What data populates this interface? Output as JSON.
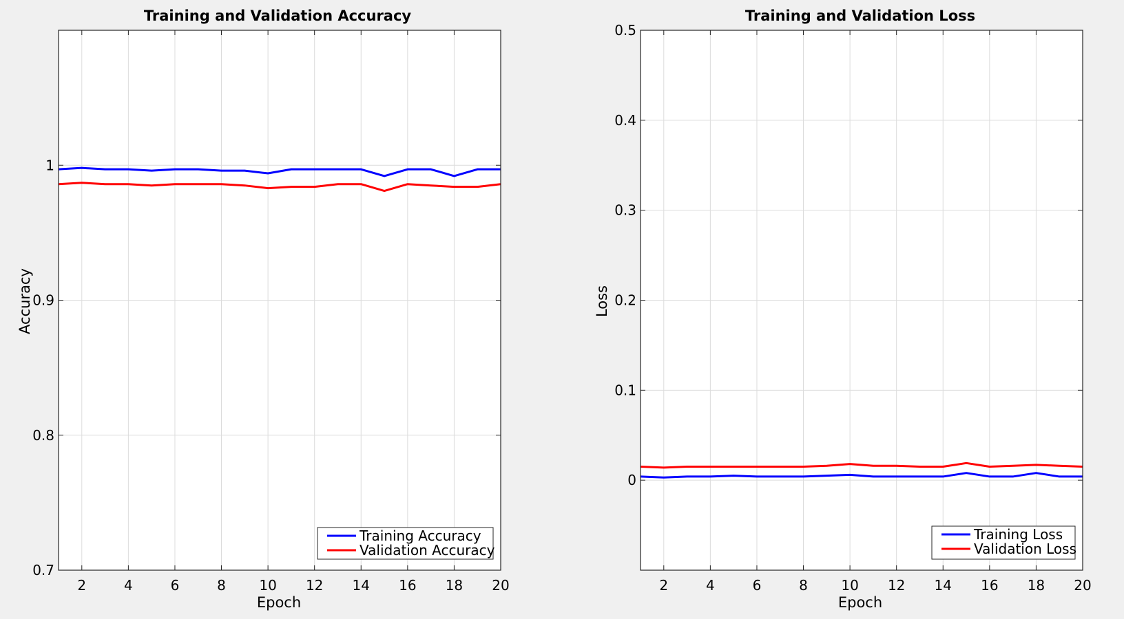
{
  "colors": {
    "background": "#f0f0f0",
    "plot_background": "#ffffff",
    "grid": "#dcdcdc",
    "training": "#0000ff",
    "validation": "#ff0000"
  },
  "chart_data": [
    {
      "type": "line",
      "title": "Training and Validation Accuracy",
      "xlabel": "Epoch",
      "ylabel": "Accuracy",
      "xlim": [
        1,
        20
      ],
      "ylim": [
        0.7,
        1.1
      ],
      "xticks": [
        2,
        4,
        6,
        8,
        10,
        12,
        14,
        16,
        18,
        20
      ],
      "yticks": [
        0.7,
        0.8,
        0.9,
        1.0
      ],
      "ytick_labels": [
        "0.7",
        "0.8",
        "0.9",
        "1"
      ],
      "grid": true,
      "legend_position": "bottom-right",
      "x": [
        1,
        2,
        3,
        4,
        5,
        6,
        7,
        8,
        9,
        10,
        11,
        12,
        13,
        14,
        15,
        16,
        17,
        18,
        19,
        20
      ],
      "series": [
        {
          "name": "Training Accuracy",
          "color": "#0000ff",
          "values": [
            0.997,
            0.998,
            0.997,
            0.997,
            0.996,
            0.997,
            0.997,
            0.996,
            0.996,
            0.994,
            0.997,
            0.997,
            0.997,
            0.997,
            0.992,
            0.997,
            0.997,
            0.992,
            0.997,
            0.997
          ]
        },
        {
          "name": "Validation Accuracy",
          "color": "#ff0000",
          "values": [
            0.986,
            0.987,
            0.986,
            0.986,
            0.985,
            0.986,
            0.986,
            0.986,
            0.985,
            0.983,
            0.984,
            0.984,
            0.986,
            0.986,
            0.981,
            0.986,
            0.985,
            0.984,
            0.984,
            0.986
          ]
        }
      ]
    },
    {
      "type": "line",
      "title": "Training and Validation Loss",
      "xlabel": "Epoch",
      "ylabel": "Loss",
      "xlim": [
        1,
        20
      ],
      "ylim": [
        -0.1,
        0.5
      ],
      "xticks": [
        2,
        4,
        6,
        8,
        10,
        12,
        14,
        16,
        18,
        20
      ],
      "yticks": [
        0,
        0.1,
        0.2,
        0.3,
        0.4,
        0.5
      ],
      "ytick_labels": [
        "0",
        "0.1",
        "0.2",
        "0.3",
        "0.4",
        "0.5"
      ],
      "grid": true,
      "legend_position": "bottom-right",
      "x": [
        1,
        2,
        3,
        4,
        5,
        6,
        7,
        8,
        9,
        10,
        11,
        12,
        13,
        14,
        15,
        16,
        17,
        18,
        19,
        20
      ],
      "series": [
        {
          "name": "Training Loss",
          "color": "#0000ff",
          "values": [
            0.004,
            0.003,
            0.004,
            0.004,
            0.005,
            0.004,
            0.004,
            0.004,
            0.005,
            0.006,
            0.004,
            0.004,
            0.004,
            0.004,
            0.008,
            0.004,
            0.004,
            0.008,
            0.004,
            0.004
          ]
        },
        {
          "name": "Validation Loss",
          "color": "#ff0000",
          "values": [
            0.015,
            0.014,
            0.015,
            0.015,
            0.015,
            0.015,
            0.015,
            0.015,
            0.016,
            0.018,
            0.016,
            0.016,
            0.015,
            0.015,
            0.019,
            0.015,
            0.016,
            0.017,
            0.016,
            0.015
          ]
        }
      ]
    }
  ]
}
